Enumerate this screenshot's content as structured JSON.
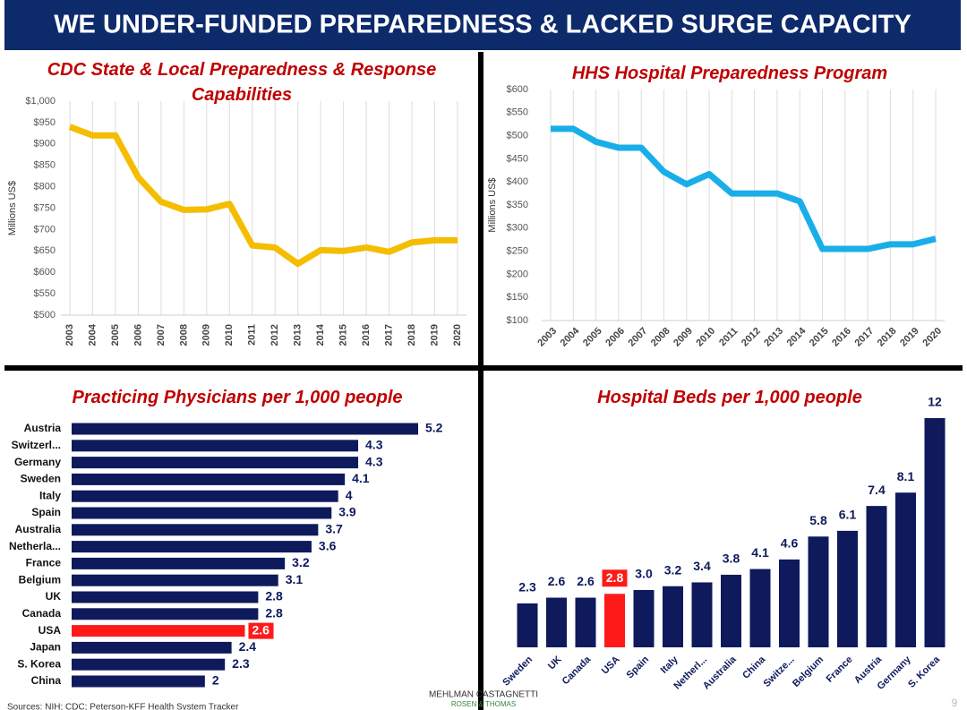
{
  "title": "WE UNDER-FUNDED PREPAREDNESS & LACKED SURGE CAPACITY",
  "footer": {
    "sources": "Sources: NIH; CDC; Peterson-KFF Health System Tracker",
    "logo": [
      "MEHLMAN CASTAGNETTI",
      "ROSEN & THOMAS"
    ],
    "page": "9"
  },
  "chart_data": [
    {
      "type": "line",
      "title": "CDC State & Local Preparedness & Response Capabilities",
      "ylabel": "Millions US$",
      "categories": [
        "2003",
        "2004",
        "2005",
        "2006",
        "2007",
        "2008",
        "2009",
        "2010",
        "2011",
        "2012",
        "2013",
        "2014",
        "2015",
        "2016",
        "2017",
        "2018",
        "2019",
        "2020"
      ],
      "values": [
        940,
        920,
        920,
        822,
        765,
        746,
        747,
        760,
        663,
        658,
        620,
        652,
        650,
        658,
        648,
        670,
        675,
        675
      ],
      "color": "#f5bd00",
      "xlabel_rotation": -90,
      "ylim": [
        500,
        1000
      ],
      "yticks": [
        {
          "value": 500,
          "label": "$500"
        },
        {
          "value": 550,
          "label": "$550"
        },
        {
          "value": 600,
          "label": "$600"
        },
        {
          "value": 650,
          "label": "$650"
        },
        {
          "value": 700,
          "label": "$700"
        },
        {
          "value": 750,
          "label": "$750"
        },
        {
          "value": 800,
          "label": "$800"
        },
        {
          "value": 850,
          "label": "$850"
        },
        {
          "value": 900,
          "label": "$900"
        },
        {
          "value": 950,
          "label": "$950"
        },
        {
          "value": 1000,
          "label": "$1,000"
        }
      ],
      "grid": "x"
    },
    {
      "type": "line",
      "title": "HHS Hospital Preparedness Program",
      "ylabel": "Millions US$",
      "categories": [
        "2003",
        "2004",
        "2005",
        "2006",
        "2007",
        "2008",
        "2009",
        "2010",
        "2011",
        "2012",
        "2013",
        "2014",
        "2015",
        "2016",
        "2017",
        "2018",
        "2019",
        "2020"
      ],
      "values": [
        515,
        515,
        487,
        474,
        474,
        422,
        395,
        417,
        375,
        375,
        375,
        358,
        255,
        255,
        255,
        265,
        265,
        277
      ],
      "color": "#1aaee8",
      "xlabel_rotation": -45,
      "ylim": [
        100,
        600
      ],
      "yticks": [
        {
          "value": 100,
          "label": "$100"
        },
        {
          "value": 150,
          "label": "$150"
        },
        {
          "value": 200,
          "label": "$200"
        },
        {
          "value": 250,
          "label": "$250"
        },
        {
          "value": 300,
          "label": "$300"
        },
        {
          "value": 350,
          "label": "$350"
        },
        {
          "value": 400,
          "label": "$400"
        },
        {
          "value": 450,
          "label": "$450"
        },
        {
          "value": 500,
          "label": "$500"
        },
        {
          "value": 550,
          "label": "$550"
        },
        {
          "value": 600,
          "label": "$600"
        }
      ],
      "grid": "x"
    },
    {
      "type": "hbar",
      "title": "Practicing Physicians per 1,000 people",
      "categories": [
        "Austria",
        "Switzerl...",
        "Germany",
        "Sweden",
        "Italy",
        "Spain",
        "Australia",
        "Netherla...",
        "France",
        "Belgium",
        "UK",
        "Canada",
        "USA",
        "Japan",
        "S. Korea",
        "China"
      ],
      "values": [
        5.2,
        4.3,
        4.3,
        4.1,
        4,
        3.9,
        3.7,
        3.6,
        3.2,
        3.1,
        2.8,
        2.8,
        2.6,
        2.4,
        2.3,
        2
      ],
      "color": "#0e1a5c",
      "colors": [
        "#0e1a5c",
        "#0e1a5c",
        "#0e1a5c",
        "#0e1a5c",
        "#0e1a5c",
        "#0e1a5c",
        "#0e1a5c",
        "#0e1a5c",
        "#0e1a5c",
        "#0e1a5c",
        "#0e1a5c",
        "#0e1a5c",
        "#ff1a1a",
        "#0e1a5c",
        "#0e1a5c",
        "#0e1a5c"
      ]
    },
    {
      "type": "bar",
      "title": "Hospital Beds per 1,000 people",
      "categories": [
        "Sweden",
        "UK",
        "Canada",
        "USA",
        "Spain",
        "Italy",
        "Netherl...",
        "Australia",
        "China",
        "Switze...",
        "Belgium",
        "France",
        "Austria",
        "Germany",
        "S. Korea"
      ],
      "values": [
        2.3,
        2.6,
        2.6,
        2.8,
        3.0,
        3.2,
        3.4,
        3.8,
        4.1,
        4.6,
        5.8,
        6.1,
        7.4,
        8.1,
        12
      ],
      "value_labels": [
        "2.3",
        "2.6",
        "2.6",
        "2.8",
        "3.0",
        "3.2",
        "3.4",
        "3.8",
        "4.1",
        "4.6",
        "5.8",
        "6.1",
        "7.4",
        "8.1",
        "12"
      ],
      "color": "#0e1a5c",
      "colors": [
        "#0e1a5c",
        "#0e1a5c",
        "#0e1a5c",
        "#ff1a1a",
        "#0e1a5c",
        "#0e1a5c",
        "#0e1a5c",
        "#0e1a5c",
        "#0e1a5c",
        "#0e1a5c",
        "#0e1a5c",
        "#0e1a5c",
        "#0e1a5c",
        "#0e1a5c",
        "#0e1a5c"
      ]
    }
  ]
}
